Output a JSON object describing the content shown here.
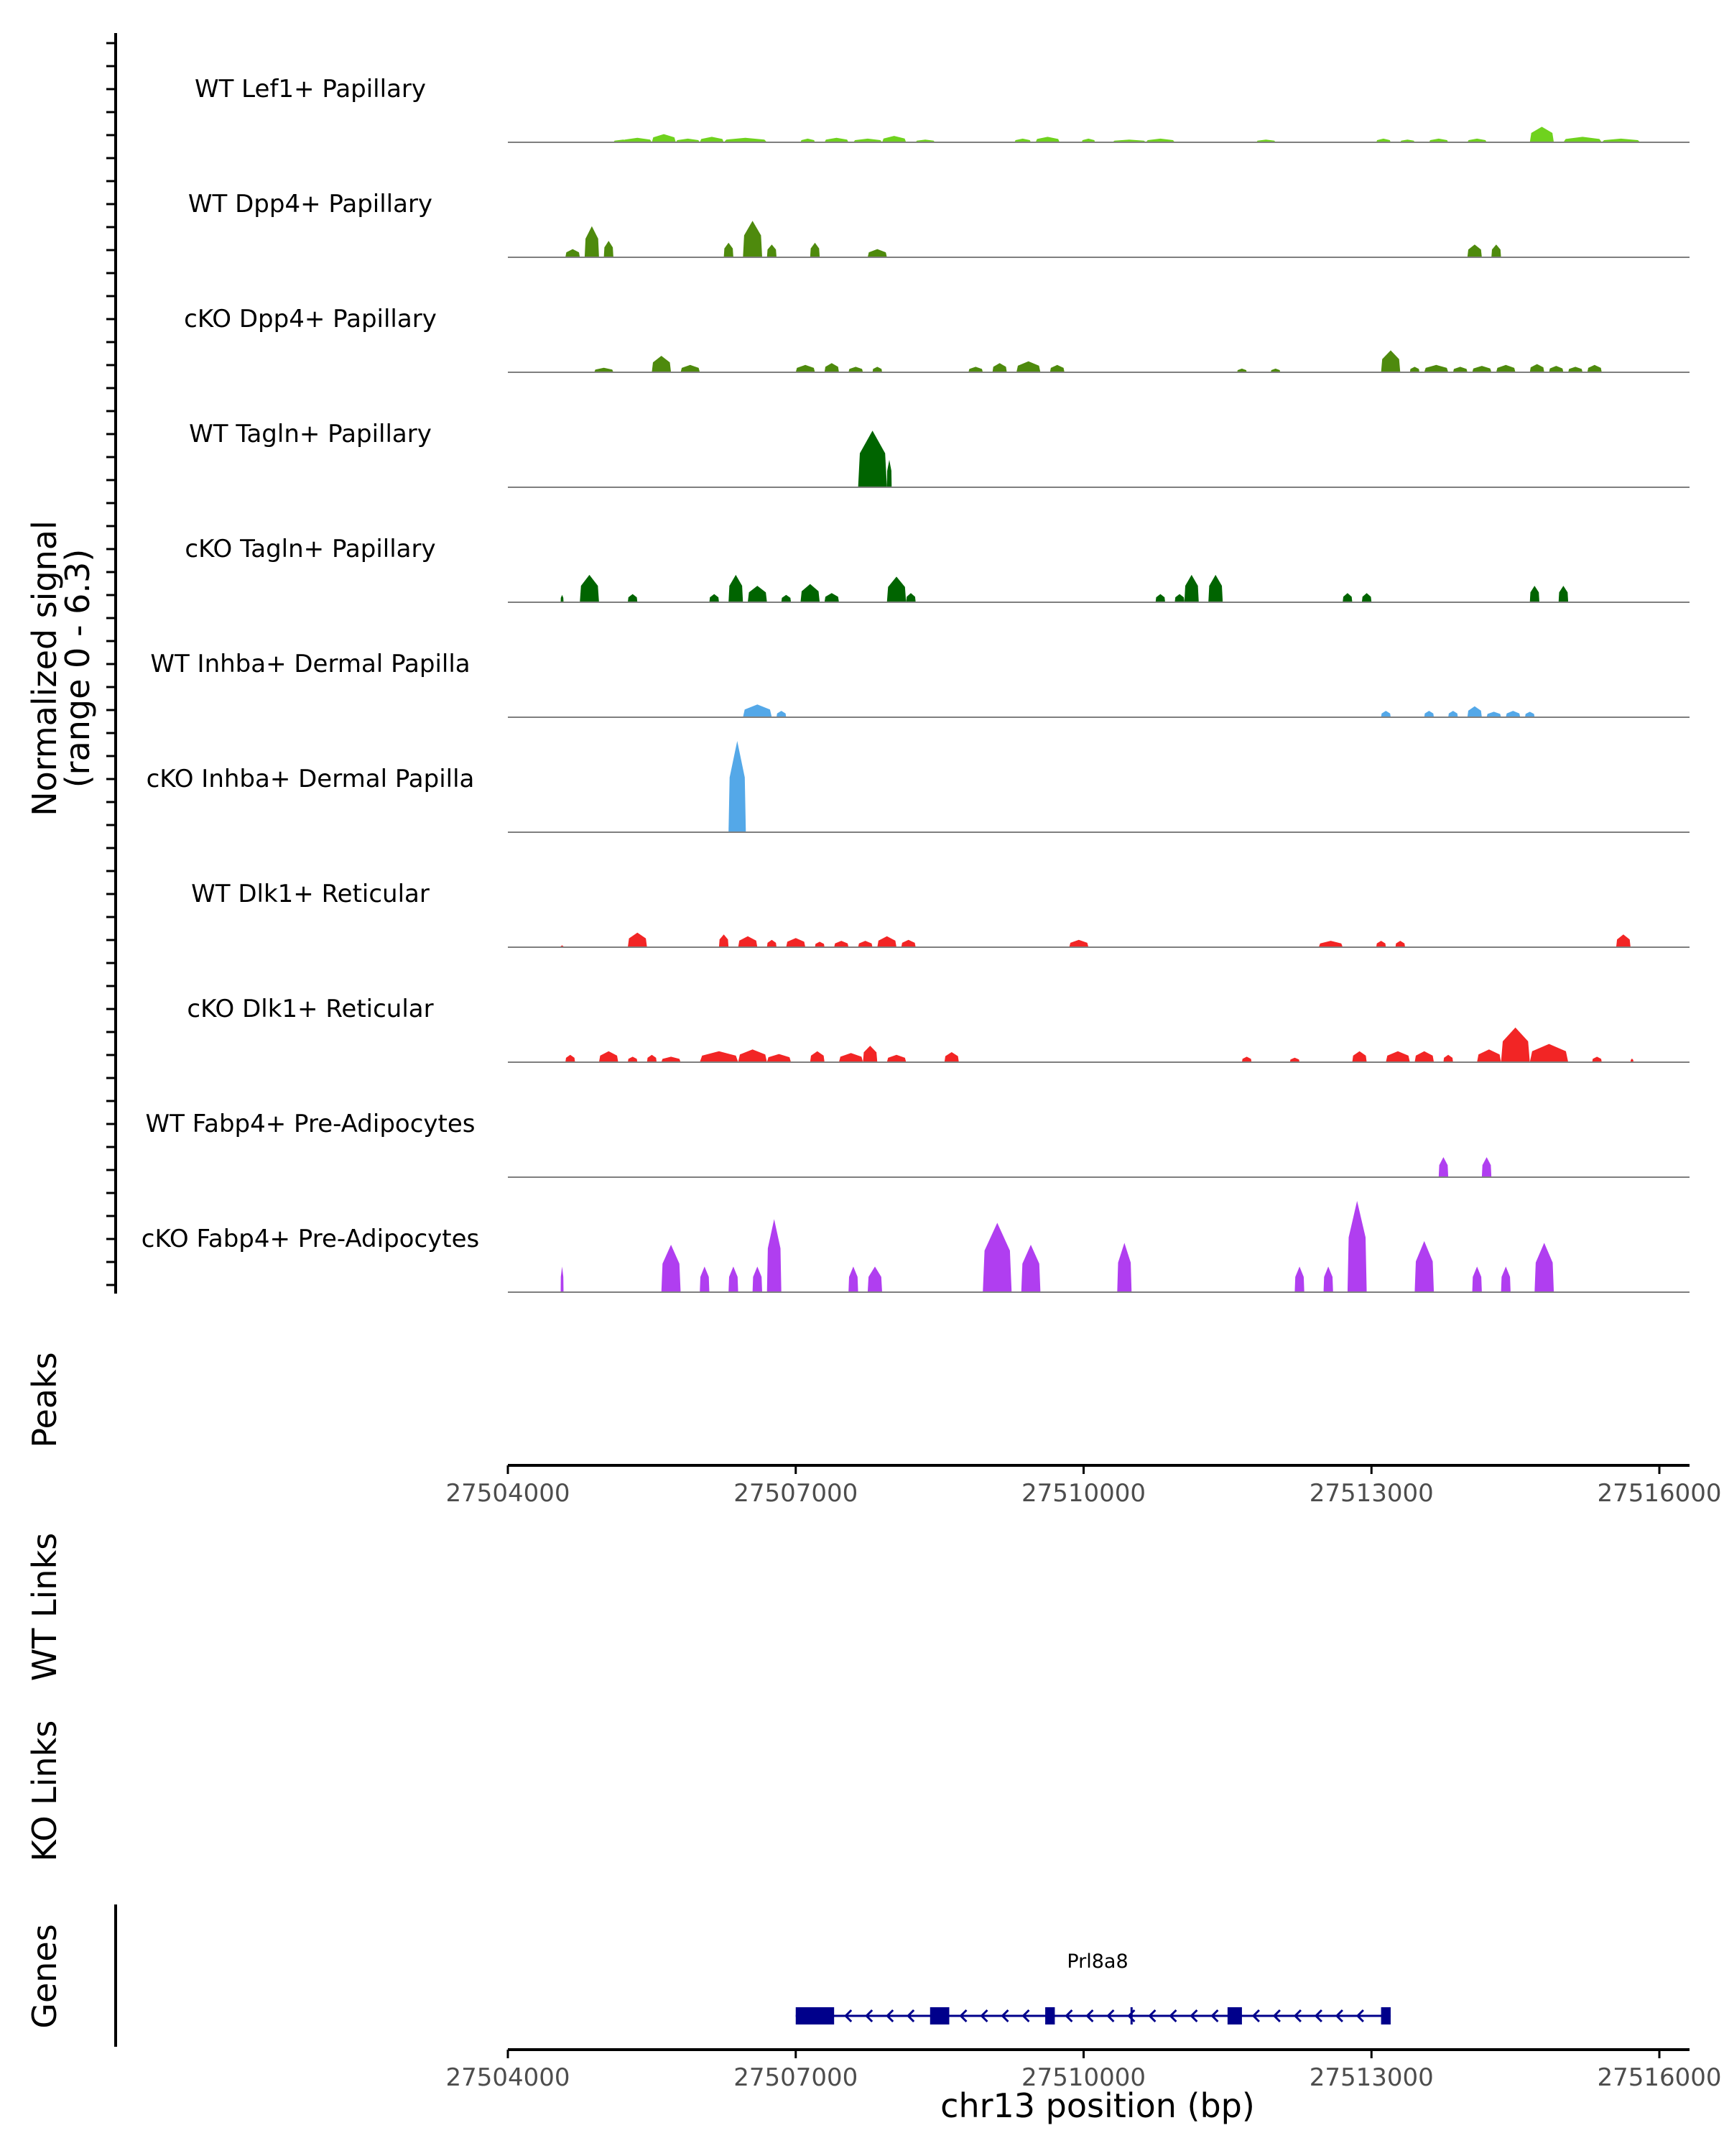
{
  "chart_data": {
    "type": "area",
    "title": "",
    "xlabel": "chr13 position (bp)",
    "ylabel": "Normalized signal",
    "ylabel_range": "(range 0 - 6.3)",
    "ylim": [
      0,
      6.3
    ],
    "xlim": [
      27504000,
      27516000
    ],
    "x_ticks": [
      27504000,
      27507000,
      27510000,
      27513000,
      27516000
    ],
    "x_tick_labels": [
      "27504000",
      "27507000",
      "27510000",
      "27513000",
      "27516000"
    ],
    "tracks": [
      {
        "name": "WT Lef1+ Papillary",
        "color": "#6fd21e",
        "peaks": [
          [
            27505100,
            27505300,
            0.15
          ],
          [
            27505200,
            27505500,
            0.25
          ],
          [
            27505500,
            27505750,
            0.45
          ],
          [
            27505750,
            27506000,
            0.2
          ],
          [
            27506000,
            27506250,
            0.3
          ],
          [
            27506250,
            27506700,
            0.25
          ],
          [
            27507050,
            27507200,
            0.2
          ],
          [
            27507300,
            27507550,
            0.25
          ],
          [
            27507600,
            27507900,
            0.2
          ],
          [
            27507900,
            27508150,
            0.35
          ],
          [
            27508250,
            27508450,
            0.15
          ],
          [
            27509280,
            27509450,
            0.2
          ],
          [
            27509500,
            27509750,
            0.3
          ],
          [
            27509980,
            27510120,
            0.2
          ],
          [
            27510300,
            27510650,
            0.15
          ],
          [
            27510650,
            27510950,
            0.2
          ],
          [
            27511800,
            27512000,
            0.15
          ],
          [
            27513050,
            27513200,
            0.2
          ],
          [
            27513300,
            27513450,
            0.15
          ],
          [
            27513600,
            27513800,
            0.2
          ],
          [
            27514000,
            27514200,
            0.2
          ],
          [
            27514650,
            27514900,
            0.85
          ],
          [
            27515000,
            27515400,
            0.3
          ],
          [
            27515400,
            27515800,
            0.2
          ]
        ]
      },
      {
        "name": "WT Dpp4+ Papillary",
        "color": "#4e8a0d",
        "peaks": [
          [
            27504600,
            27504750,
            0.45
          ],
          [
            27504800,
            27504950,
            1.7
          ],
          [
            27505000,
            27505100,
            0.9
          ],
          [
            27506250,
            27506350,
            0.8
          ],
          [
            27506450,
            27506650,
            2.0
          ],
          [
            27506700,
            27506800,
            0.7
          ],
          [
            27507150,
            27507250,
            0.8
          ],
          [
            27507750,
            27507950,
            0.45
          ],
          [
            27514000,
            27514150,
            0.7
          ],
          [
            27514250,
            27514350,
            0.7
          ]
        ]
      },
      {
        "name": "cKO Dpp4+ Papillary",
        "color": "#4e8a0d",
        "peaks": [
          [
            27504900,
            27505100,
            0.25
          ],
          [
            27505500,
            27505700,
            0.9
          ],
          [
            27505800,
            27506000,
            0.4
          ],
          [
            27507000,
            27507200,
            0.4
          ],
          [
            27507300,
            27507450,
            0.5
          ],
          [
            27507550,
            27507700,
            0.3
          ],
          [
            27507800,
            27507900,
            0.3
          ],
          [
            27508800,
            27508950,
            0.3
          ],
          [
            27509050,
            27509200,
            0.5
          ],
          [
            27509300,
            27509550,
            0.6
          ],
          [
            27509650,
            27509800,
            0.4
          ],
          [
            27511600,
            27511700,
            0.2
          ],
          [
            27511950,
            27512050,
            0.2
          ],
          [
            27513100,
            27513300,
            1.2
          ],
          [
            27513400,
            27513500,
            0.3
          ],
          [
            27513550,
            27513800,
            0.4
          ],
          [
            27513850,
            27514000,
            0.3
          ],
          [
            27514050,
            27514250,
            0.35
          ],
          [
            27514300,
            27514500,
            0.4
          ],
          [
            27514650,
            27514800,
            0.45
          ],
          [
            27514850,
            27515000,
            0.35
          ],
          [
            27515050,
            27515200,
            0.3
          ],
          [
            27515250,
            27515400,
            0.4
          ]
        ]
      },
      {
        "name": "WT Tagln+ Papillary",
        "color": "#006400",
        "peaks": [
          [
            27507650,
            27507950,
            3.1
          ],
          [
            27507950,
            27508000,
            1.5
          ]
        ]
      },
      {
        "name": "cKO Tagln+ Papillary",
        "color": "#006400",
        "peaks": [
          [
            27504550,
            27504580,
            0.4
          ],
          [
            27504750,
            27504950,
            1.5
          ],
          [
            27505250,
            27505350,
            0.45
          ],
          [
            27506100,
            27506200,
            0.45
          ],
          [
            27506300,
            27506450,
            1.5
          ],
          [
            27506500,
            27506700,
            0.9
          ],
          [
            27506850,
            27506950,
            0.4
          ],
          [
            27507050,
            27507250,
            1.0
          ],
          [
            27507300,
            27507450,
            0.5
          ],
          [
            27507950,
            27508150,
            1.4
          ],
          [
            27508150,
            27508250,
            0.5
          ],
          [
            27510750,
            27510850,
            0.45
          ],
          [
            27510950,
            27511050,
            0.45
          ],
          [
            27511050,
            27511200,
            1.5
          ],
          [
            27511300,
            27511450,
            1.5
          ],
          [
            27512700,
            27512800,
            0.5
          ],
          [
            27512900,
            27513000,
            0.5
          ],
          [
            27514650,
            27514750,
            0.9
          ],
          [
            27514950,
            27515050,
            0.9
          ]
        ]
      },
      {
        "name": "WT Inhba+ Dermal Papilla",
        "color": "#54a8e8",
        "peaks": [
          [
            27506450,
            27506750,
            0.7
          ],
          [
            27506800,
            27506900,
            0.35
          ],
          [
            27513100,
            27513200,
            0.35
          ],
          [
            27513550,
            27513650,
            0.35
          ],
          [
            27513800,
            27513900,
            0.35
          ],
          [
            27514000,
            27514150,
            0.6
          ],
          [
            27514200,
            27514350,
            0.3
          ],
          [
            27514400,
            27514550,
            0.35
          ],
          [
            27514600,
            27514700,
            0.3
          ]
        ]
      },
      {
        "name": "cKO Inhba+ Dermal Papilla",
        "color": "#54a8e8",
        "peaks": [
          [
            27506300,
            27506480,
            5.0
          ]
        ]
      },
      {
        "name": "WT Dlk1+ Reticular",
        "color": "#f22525",
        "peaks": [
          [
            27504550,
            27504580,
            0.1
          ],
          [
            27505250,
            27505450,
            0.8
          ],
          [
            27506200,
            27506300,
            0.7
          ],
          [
            27506400,
            27506600,
            0.6
          ],
          [
            27506700,
            27506800,
            0.4
          ],
          [
            27506900,
            27507100,
            0.5
          ],
          [
            27507200,
            27507300,
            0.3
          ],
          [
            27507400,
            27507550,
            0.35
          ],
          [
            27507650,
            27507800,
            0.35
          ],
          [
            27507850,
            27508050,
            0.6
          ],
          [
            27508100,
            27508250,
            0.4
          ],
          [
            27509850,
            27510050,
            0.4
          ],
          [
            27512450,
            27512700,
            0.35
          ],
          [
            27513050,
            27513150,
            0.35
          ],
          [
            27513250,
            27513350,
            0.35
          ],
          [
            27515550,
            27515700,
            0.7
          ]
        ]
      },
      {
        "name": "cKO Dlk1+ Reticular",
        "color": "#f22525",
        "peaks": [
          [
            27504600,
            27504700,
            0.4
          ],
          [
            27504950,
            27505150,
            0.6
          ],
          [
            27505250,
            27505350,
            0.3
          ],
          [
            27505450,
            27505550,
            0.4
          ],
          [
            27505600,
            27505800,
            0.3
          ],
          [
            27506000,
            27506400,
            0.6
          ],
          [
            27506400,
            27506700,
            0.7
          ],
          [
            27506700,
            27506950,
            0.45
          ],
          [
            27507150,
            27507300,
            0.6
          ],
          [
            27507450,
            27507700,
            0.5
          ],
          [
            27507700,
            27507850,
            0.9
          ],
          [
            27507950,
            27508150,
            0.4
          ],
          [
            27508550,
            27508700,
            0.55
          ],
          [
            27511650,
            27511750,
            0.3
          ],
          [
            27512150,
            27512250,
            0.25
          ],
          [
            27512800,
            27512950,
            0.6
          ],
          [
            27513150,
            27513400,
            0.6
          ],
          [
            27513450,
            27513650,
            0.6
          ],
          [
            27513750,
            27513850,
            0.4
          ],
          [
            27514100,
            27514350,
            0.7
          ],
          [
            27514350,
            27514650,
            1.9
          ],
          [
            27514650,
            27515050,
            1.0
          ],
          [
            27515300,
            27515400,
            0.3
          ],
          [
            27515700,
            27515730,
            0.2
          ]
        ]
      },
      {
        "name": "WT Fabp4+ Pre-Adipocytes",
        "color": "#b03ef0",
        "peaks": [
          [
            27513700,
            27513800,
            1.1
          ],
          [
            27514150,
            27514250,
            1.1
          ]
        ]
      },
      {
        "name": "cKO Fabp4+ Pre-Adipocytes",
        "color": "#b03ef0",
        "peaks": [
          [
            27504550,
            27504580,
            1.4
          ],
          [
            27505600,
            27505800,
            2.6
          ],
          [
            27506000,
            27506100,
            1.4
          ],
          [
            27506300,
            27506400,
            1.4
          ],
          [
            27506550,
            27506650,
            1.4
          ],
          [
            27506700,
            27506850,
            4.0
          ],
          [
            27507550,
            27507650,
            1.4
          ],
          [
            27507750,
            27507900,
            1.4
          ],
          [
            27508950,
            27509250,
            3.8
          ],
          [
            27509350,
            27509550,
            2.6
          ],
          [
            27510350,
            27510500,
            2.7
          ],
          [
            27512200,
            27512300,
            1.4
          ],
          [
            27512500,
            27512600,
            1.4
          ],
          [
            27512750,
            27512950,
            5.0
          ],
          [
            27513450,
            27513650,
            2.8
          ],
          [
            27514050,
            27514150,
            1.4
          ],
          [
            27514350,
            27514450,
            1.4
          ],
          [
            27514700,
            27514900,
            2.7
          ]
        ]
      }
    ],
    "peaks_label": "Peaks",
    "wt_links_label": "WT Links",
    "ko_links_label": "KO Links",
    "genes_label": "Genes",
    "gene": {
      "name": "Prl8a8",
      "start": 27507000,
      "end": 27513200,
      "strand": "-",
      "exons": [
        [
          27507000,
          27507400
        ],
        [
          27508400,
          27508600
        ],
        [
          27509600,
          27509700
        ],
        [
          27511500,
          27511650
        ],
        [
          27513100,
          27513200
        ]
      ],
      "color": "#00008b"
    }
  }
}
